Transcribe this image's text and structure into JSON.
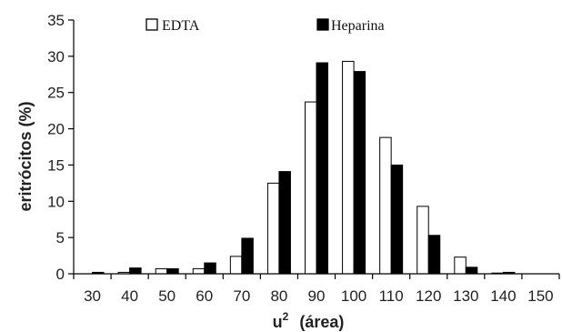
{
  "chart_data": {
    "type": "bar",
    "title": "",
    "xlabel": "u",
    "xlabel_superscript": "2",
    "xlabel_suffix": "(área)",
    "ylabel": "eritrócitos (%)",
    "ylim": [
      0,
      35
    ],
    "yticks": [
      "0",
      "5",
      "10",
      "15",
      "20",
      "25",
      "30",
      "35"
    ],
    "categories": [
      "30",
      "40",
      "50",
      "60",
      "70",
      "80",
      "90",
      "100",
      "110",
      "120",
      "130",
      "140",
      "150"
    ],
    "series": [
      {
        "name": "EDTA",
        "color": "#ffffff",
        "values": [
          0,
          0.2,
          0.7,
          0.7,
          2.4,
          12.5,
          23.7,
          29.3,
          18.8,
          9.3,
          2.3,
          0.1,
          0
        ]
      },
      {
        "name": "Heparina",
        "color": "#000000",
        "values": [
          0.2,
          0.8,
          0.7,
          1.5,
          4.9,
          14.1,
          29.1,
          27.9,
          15.0,
          5.3,
          0.9,
          0.2,
          0
        ]
      }
    ],
    "grid": false,
    "legend_position": "top"
  }
}
